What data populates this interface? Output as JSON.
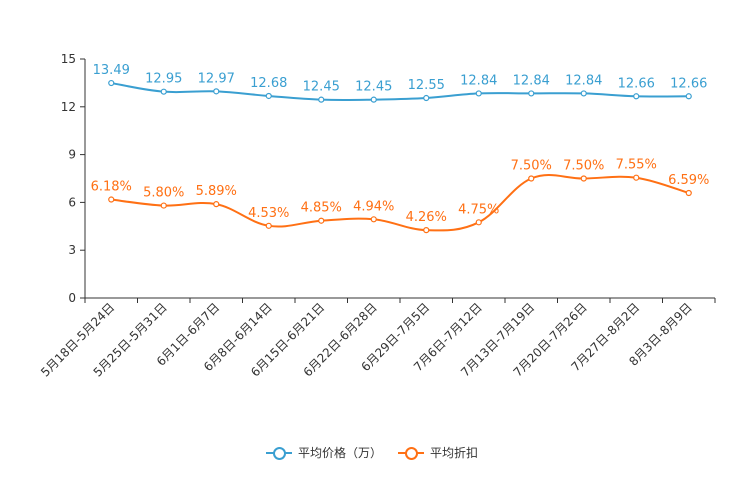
{
  "chart_data": {
    "type": "line",
    "categories": [
      "5月18日-5月24日",
      "5月25日-5月31日",
      "6月1日-6月7日",
      "6月8日-6月14日",
      "6月15日-6月21日",
      "6月22日-6月28日",
      "6月29日-7月5日",
      "7月6日-7月12日",
      "7月13日-7月19日",
      "7月20日-7月26日",
      "7月27日-8月2日",
      "8月3日-8月9日"
    ],
    "ylim": [
      0,
      15
    ],
    "yticks": [
      0,
      3,
      6,
      9,
      12,
      15
    ],
    "series": [
      {
        "name": "平均价格（万）",
        "color": "#3a9fd1",
        "values": [
          13.49,
          12.95,
          12.97,
          12.68,
          12.45,
          12.45,
          12.55,
          12.84,
          12.84,
          12.84,
          12.66,
          12.66
        ],
        "labels": [
          "13.49",
          "12.95",
          "12.97",
          "12.68",
          "12.45",
          "12.45",
          "12.55",
          "12.84",
          "12.84",
          "12.84",
          "12.66",
          "12.66"
        ]
      },
      {
        "name": "平均折扣",
        "color": "#ff7014",
        "values": [
          6.18,
          5.8,
          5.89,
          4.53,
          4.85,
          4.94,
          4.26,
          4.75,
          7.5,
          7.5,
          7.55,
          6.59
        ],
        "labels": [
          "6.18%",
          "5.80%",
          "5.89%",
          "4.53%",
          "4.85%",
          "4.94%",
          "4.26%",
          "4.75%",
          "7.50%",
          "7.50%",
          "7.55%",
          "6.59%"
        ]
      }
    ]
  }
}
